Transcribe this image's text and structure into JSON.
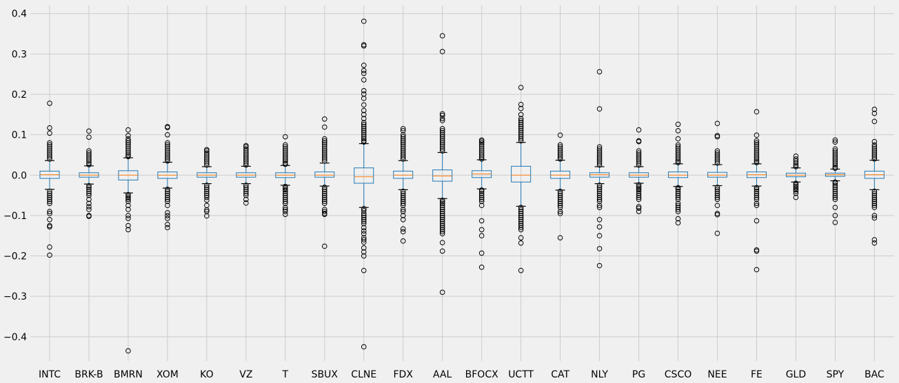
{
  "chart_data": {
    "type": "box",
    "title": "",
    "xlabel": "",
    "ylabel": "",
    "ylim": [
      -0.46,
      0.42
    ],
    "yticks": [
      -0.4,
      -0.3,
      -0.2,
      -0.1,
      0.0,
      0.1,
      0.2,
      0.3,
      0.4
    ],
    "ytick_labels": [
      "−0.4",
      "−0.3",
      "−0.2",
      "−0.1",
      "0.0",
      "0.1",
      "0.2",
      "0.3",
      "0.4"
    ],
    "grid": true,
    "colors": {
      "box": "#1f77b4",
      "median": "#ff7f0e",
      "cap": "#000000",
      "flier": "#000000",
      "grid": "#cbcbcb",
      "background": "#f0f0f0"
    },
    "series": [
      {
        "name": "INTC",
        "whislo": -0.035,
        "q1": -0.008,
        "med": 0.001,
        "q3": 0.01,
        "whishi": 0.036,
        "fliers": [
          0.178,
          0.117,
          0.104,
          0.08,
          0.075,
          0.07,
          0.065,
          0.06,
          0.055,
          0.05,
          0.045,
          0.04,
          -0.04,
          -0.045,
          -0.05,
          -0.055,
          -0.06,
          -0.065,
          -0.07,
          -0.09,
          -0.095,
          -0.11,
          -0.125,
          -0.128,
          -0.178,
          -0.198
        ]
      },
      {
        "name": "BRK-B",
        "whislo": -0.022,
        "q1": -0.005,
        "med": 0.0,
        "q3": 0.006,
        "whishi": 0.023,
        "fliers": [
          0.109,
          0.094,
          0.06,
          0.055,
          0.05,
          0.045,
          0.04,
          0.035,
          0.03,
          0.026,
          -0.026,
          -0.03,
          -0.035,
          -0.04,
          -0.045,
          -0.05,
          -0.06,
          -0.07,
          -0.078,
          -0.085,
          -0.1,
          -0.102
        ]
      },
      {
        "name": "BMRN",
        "whislo": -0.044,
        "q1": -0.012,
        "med": 0.0,
        "q3": 0.011,
        "whishi": 0.043,
        "fliers": [
          0.112,
          0.098,
          0.09,
          0.085,
          0.08,
          0.075,
          0.07,
          0.065,
          0.06,
          0.055,
          0.05,
          0.046,
          -0.048,
          -0.052,
          -0.056,
          -0.06,
          -0.065,
          -0.075,
          -0.085,
          -0.1,
          -0.107,
          -0.125,
          -0.135,
          -0.435
        ]
      },
      {
        "name": "XOM",
        "whislo": -0.032,
        "q1": -0.008,
        "med": 0.0,
        "q3": 0.008,
        "whishi": 0.032,
        "fliers": [
          0.12,
          0.118,
          0.1,
          0.08,
          0.075,
          0.07,
          0.065,
          0.06,
          0.055,
          0.05,
          0.045,
          0.04,
          0.035,
          -0.035,
          -0.04,
          -0.045,
          -0.05,
          -0.055,
          -0.06,
          -0.065,
          -0.075,
          -0.093,
          -0.1,
          -0.107,
          -0.122,
          -0.13
        ]
      },
      {
        "name": "KO",
        "whislo": -0.021,
        "q1": -0.005,
        "med": 0.0,
        "q3": 0.006,
        "whishi": 0.021,
        "fliers": [
          0.063,
          0.06,
          0.055,
          0.05,
          0.045,
          0.04,
          0.035,
          0.03,
          0.025,
          -0.025,
          -0.03,
          -0.035,
          -0.04,
          -0.045,
          -0.05,
          -0.055,
          -0.062,
          -0.075,
          -0.086,
          -0.09,
          -0.101
        ]
      },
      {
        "name": "VZ",
        "whislo": -0.021,
        "q1": -0.005,
        "med": 0.0,
        "q3": 0.006,
        "whishi": 0.022,
        "fliers": [
          0.073,
          0.07,
          0.065,
          0.06,
          0.055,
          0.05,
          0.045,
          0.04,
          0.035,
          0.03,
          0.025,
          -0.025,
          -0.03,
          -0.035,
          -0.04,
          -0.045,
          -0.05,
          -0.06,
          -0.069
        ]
      },
      {
        "name": "T",
        "whislo": -0.025,
        "q1": -0.006,
        "med": 0.0,
        "q3": 0.006,
        "whishi": 0.024,
        "fliers": [
          0.095,
          0.075,
          0.07,
          0.065,
          0.06,
          0.055,
          0.05,
          0.045,
          0.04,
          0.035,
          0.03,
          0.027,
          -0.028,
          -0.032,
          -0.036,
          -0.04,
          -0.045,
          -0.05,
          -0.055,
          -0.06,
          -0.065,
          -0.07,
          -0.08,
          -0.085,
          -0.09,
          -0.097
        ]
      },
      {
        "name": "SBUX",
        "whislo": -0.027,
        "q1": -0.005,
        "med": 0.0,
        "q3": 0.008,
        "whishi": 0.03,
        "fliers": [
          0.139,
          0.119,
          0.09,
          0.085,
          0.08,
          0.075,
          0.07,
          0.065,
          0.06,
          0.055,
          0.05,
          0.045,
          0.04,
          0.035,
          -0.03,
          -0.035,
          -0.04,
          -0.045,
          -0.05,
          -0.055,
          -0.06,
          -0.065,
          -0.07,
          -0.085,
          -0.09,
          -0.095,
          -0.097,
          -0.176
        ]
      },
      {
        "name": "CLNE",
        "whislo": -0.08,
        "q1": -0.02,
        "med": -0.004,
        "q3": 0.018,
        "whishi": 0.078,
        "fliers": [
          0.381,
          0.323,
          0.32,
          0.272,
          0.259,
          0.252,
          0.236,
          0.209,
          0.201,
          0.19,
          0.174,
          0.16,
          0.15,
          0.14,
          0.13,
          0.125,
          0.12,
          0.115,
          0.11,
          0.105,
          0.1,
          0.095,
          0.09,
          0.085,
          0.082,
          -0.083,
          -0.088,
          -0.095,
          -0.1,
          -0.105,
          -0.11,
          -0.115,
          -0.12,
          -0.13,
          -0.138,
          -0.145,
          -0.155,
          -0.16,
          -0.166,
          -0.18,
          -0.19,
          -0.2,
          -0.236,
          -0.425
        ]
      },
      {
        "name": "FDX",
        "whislo": -0.036,
        "q1": -0.008,
        "med": 0.0,
        "q3": 0.01,
        "whishi": 0.036,
        "fliers": [
          0.115,
          0.11,
          0.1,
          0.095,
          0.09,
          0.085,
          0.08,
          0.075,
          0.07,
          0.065,
          0.06,
          0.055,
          0.05,
          0.045,
          0.04,
          -0.04,
          -0.045,
          -0.05,
          -0.055,
          -0.06,
          -0.065,
          -0.07,
          -0.075,
          -0.085,
          -0.09,
          -0.1,
          -0.11,
          -0.133,
          -0.14,
          -0.163
        ]
      },
      {
        "name": "AAL",
        "whislo": -0.058,
        "q1": -0.015,
        "med": -0.002,
        "q3": 0.013,
        "whishi": 0.056,
        "fliers": [
          0.345,
          0.306,
          0.152,
          0.148,
          0.14,
          0.135,
          0.115,
          0.11,
          0.105,
          0.1,
          0.095,
          0.09,
          0.085,
          0.08,
          0.075,
          0.07,
          0.065,
          0.06,
          -0.062,
          -0.066,
          -0.07,
          -0.075,
          -0.08,
          -0.085,
          -0.09,
          -0.095,
          -0.1,
          -0.105,
          -0.11,
          -0.115,
          -0.12,
          -0.125,
          -0.13,
          -0.135,
          -0.14,
          -0.145,
          -0.167,
          -0.188,
          -0.29
        ]
      },
      {
        "name": "BFOCX",
        "whislo": -0.034,
        "q1": -0.006,
        "med": 0.003,
        "q3": 0.011,
        "whishi": 0.038,
        "fliers": [
          0.087,
          0.084,
          0.08,
          0.075,
          0.07,
          0.065,
          0.06,
          0.055,
          0.05,
          0.045,
          0.04,
          -0.037,
          -0.04,
          -0.045,
          -0.05,
          -0.055,
          -0.06,
          -0.065,
          -0.075,
          -0.113,
          -0.135,
          -0.15,
          -0.193,
          -0.228
        ]
      },
      {
        "name": "UCTT",
        "whislo": -0.077,
        "q1": -0.017,
        "med": 0.0,
        "q3": 0.022,
        "whishi": 0.081,
        "fliers": [
          0.217,
          0.175,
          0.165,
          0.15,
          0.14,
          0.135,
          0.13,
          0.125,
          0.12,
          0.115,
          0.11,
          0.105,
          0.1,
          0.095,
          0.09,
          0.085,
          -0.08,
          -0.085,
          -0.09,
          -0.095,
          -0.1,
          -0.105,
          -0.11,
          -0.115,
          -0.12,
          -0.125,
          -0.13,
          -0.135,
          -0.155,
          -0.168,
          -0.236
        ]
      },
      {
        "name": "CAT",
        "whislo": -0.037,
        "q1": -0.008,
        "med": 0.0,
        "q3": 0.01,
        "whishi": 0.037,
        "fliers": [
          0.099,
          0.075,
          0.07,
          0.065,
          0.06,
          0.055,
          0.05,
          0.045,
          0.04,
          -0.04,
          -0.045,
          -0.05,
          -0.055,
          -0.06,
          -0.065,
          -0.07,
          -0.075,
          -0.08,
          -0.09,
          -0.095,
          -0.155
        ]
      },
      {
        "name": "NLY",
        "whislo": -0.021,
        "q1": -0.005,
        "med": 0.001,
        "q3": 0.006,
        "whishi": 0.021,
        "fliers": [
          0.256,
          0.164,
          0.07,
          0.065,
          0.06,
          0.055,
          0.05,
          0.045,
          0.04,
          0.035,
          0.03,
          0.025,
          -0.025,
          -0.03,
          -0.035,
          -0.04,
          -0.045,
          -0.05,
          -0.055,
          -0.06,
          -0.065,
          -0.075,
          -0.08,
          -0.11,
          -0.128,
          -0.15,
          -0.182,
          -0.224
        ]
      },
      {
        "name": "PG",
        "whislo": -0.02,
        "q1": -0.005,
        "med": 0.0,
        "q3": 0.006,
        "whishi": 0.021,
        "fliers": [
          0.112,
          0.085,
          0.083,
          0.06,
          0.055,
          0.05,
          0.045,
          0.04,
          0.035,
          0.03,
          0.025,
          -0.024,
          -0.028,
          -0.032,
          -0.036,
          -0.04,
          -0.045,
          -0.05,
          -0.055,
          -0.06,
          -0.078,
          -0.082,
          -0.09
        ]
      },
      {
        "name": "CSCO",
        "whislo": -0.028,
        "q1": -0.006,
        "med": 0.0,
        "q3": 0.008,
        "whishi": 0.028,
        "fliers": [
          0.126,
          0.11,
          0.09,
          0.075,
          0.07,
          0.065,
          0.06,
          0.055,
          0.05,
          0.045,
          0.04,
          0.035,
          0.031,
          -0.031,
          -0.035,
          -0.04,
          -0.045,
          -0.05,
          -0.055,
          -0.06,
          -0.07,
          -0.075,
          -0.08,
          -0.085,
          -0.09,
          -0.108,
          -0.118
        ]
      },
      {
        "name": "NEE",
        "whislo": -0.026,
        "q1": -0.005,
        "med": 0.0,
        "q3": 0.007,
        "whishi": 0.026,
        "fliers": [
          0.128,
          0.098,
          0.095,
          0.06,
          0.055,
          0.05,
          0.045,
          0.04,
          0.035,
          0.03,
          -0.03,
          -0.035,
          -0.04,
          -0.045,
          -0.05,
          -0.055,
          -0.06,
          -0.075,
          -0.095,
          -0.098,
          -0.144
        ]
      },
      {
        "name": "FE",
        "whislo": -0.027,
        "q1": -0.006,
        "med": 0.001,
        "q3": 0.008,
        "whishi": 0.028,
        "fliers": [
          0.157,
          0.099,
          0.085,
          0.08,
          0.075,
          0.07,
          0.065,
          0.06,
          0.055,
          0.05,
          0.045,
          0.04,
          0.035,
          0.031,
          -0.031,
          -0.035,
          -0.04,
          -0.045,
          -0.05,
          -0.055,
          -0.06,
          -0.07,
          -0.075,
          -0.113,
          -0.185,
          -0.188,
          -0.234
        ]
      },
      {
        "name": "GLD",
        "whislo": -0.017,
        "q1": -0.004,
        "med": 0.0,
        "q3": 0.005,
        "whishi": 0.018,
        "fliers": [
          0.047,
          0.04,
          0.035,
          0.03,
          0.025,
          0.021,
          -0.02,
          -0.024,
          -0.028,
          -0.032,
          -0.036,
          -0.04,
          -0.045,
          -0.055
        ]
      },
      {
        "name": "SPY",
        "whislo": -0.014,
        "q1": -0.003,
        "med": 0.001,
        "q3": 0.005,
        "whishi": 0.015,
        "fliers": [
          0.087,
          0.082,
          0.065,
          0.06,
          0.055,
          0.05,
          0.045,
          0.04,
          0.035,
          0.03,
          0.025,
          0.02,
          0.017,
          -0.017,
          -0.02,
          -0.025,
          -0.03,
          -0.035,
          -0.04,
          -0.045,
          -0.05,
          -0.055,
          -0.06,
          -0.08,
          -0.1,
          -0.117
        ]
      },
      {
        "name": "BAC",
        "whislo": -0.036,
        "q1": -0.008,
        "med": 0.001,
        "q3": 0.01,
        "whishi": 0.037,
        "fliers": [
          0.163,
          0.153,
          0.133,
          0.083,
          0.075,
          0.07,
          0.065,
          0.06,
          0.055,
          0.05,
          0.045,
          0.04,
          -0.04,
          -0.045,
          -0.05,
          -0.055,
          -0.06,
          -0.065,
          -0.07,
          -0.075,
          -0.08,
          -0.1,
          -0.106,
          -0.16,
          -0.168
        ]
      }
    ]
  }
}
